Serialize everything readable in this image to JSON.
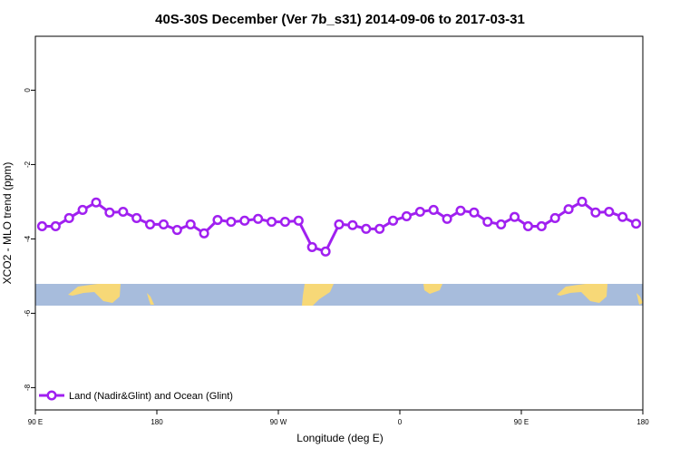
{
  "chart_data": {
    "type": "line",
    "title": "40S-30S December (Ver 7b_s31)   2014-09-06 to 2017-03-31",
    "x_label": "Longitude (deg E)",
    "y_label": "XCO2 - MLO trend (ppm)",
    "x": [
      95,
      105,
      115,
      125,
      135,
      145,
      155,
      165,
      175,
      185,
      195,
      205,
      215,
      225,
      235,
      245,
      255,
      265,
      275,
      285,
      295,
      305,
      315,
      325,
      335,
      345,
      355,
      365,
      375,
      385,
      395,
      405,
      415,
      425,
      435,
      445,
      455,
      465,
      475,
      485,
      495,
      505,
      515,
      525,
      535
    ],
    "series": [
      {
        "name": "Land (Nadir&Glint) and Ocean (Glint)",
        "color": "#a020f0",
        "values": [
          -3.66,
          -3.66,
          -3.44,
          -3.22,
          -3.02,
          -3.29,
          -3.27,
          -3.44,
          -3.61,
          -3.61,
          -3.76,
          -3.61,
          -3.85,
          -3.49,
          -3.54,
          -3.51,
          -3.46,
          -3.54,
          -3.54,
          -3.51,
          -4.22,
          -4.34,
          -3.61,
          -3.63,
          -3.73,
          -3.73,
          -3.51,
          -3.39,
          -3.27,
          -3.22,
          -3.46,
          -3.24,
          -3.29,
          -3.54,
          -3.61,
          -3.41,
          -3.66,
          -3.66,
          -3.44,
          -3.2,
          -3.0,
          -3.29,
          -3.27,
          -3.41,
          -3.59
        ]
      }
    ],
    "xlim": [
      90,
      540
    ],
    "xticks": [
      {
        "value": 90,
        "label": "90 E"
      },
      180,
      {
        "value": 270,
        "label": "90 W"
      },
      {
        "value": 360,
        "label": "0"
      },
      {
        "value": 450,
        "label": "90 E"
      },
      {
        "value": 540,
        "label": "180"
      }
    ],
    "ylim": [
      -8.6,
      1.45
    ],
    "yticks": [
      0,
      -2,
      -4,
      -6,
      -8
    ],
    "legend": "bottom-left"
  }
}
